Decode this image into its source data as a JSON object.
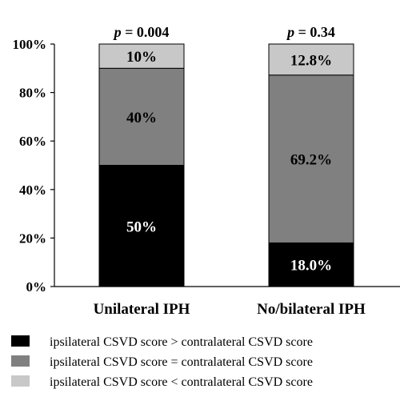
{
  "chart_data": {
    "type": "bar",
    "stacked": true,
    "categories": [
      "Unilateral IPH",
      "No/bilateral IPH"
    ],
    "p_values": [
      "= 0.004",
      "= 0.34"
    ],
    "p_symbol": "p",
    "series": [
      {
        "name": "ipsilateral CSVD score > contralateral CSVD score",
        "values": [
          50,
          18.0
        ],
        "labels": [
          "50%",
          "18.0%"
        ],
        "color": "#000000",
        "label_color": "#ffffff"
      },
      {
        "name": "ipsilateral CSVD score = contralateral CSVD score",
        "values": [
          40,
          69.2
        ],
        "labels": [
          "40%",
          "69.2%"
        ],
        "color": "#808080",
        "label_color": "#000000"
      },
      {
        "name": "ipsilateral CSVD score < contralateral CSVD score",
        "values": [
          10,
          12.8
        ],
        "labels": [
          "10%",
          "12.8%"
        ],
        "color": "#c8c8c8",
        "label_color": "#000000"
      }
    ],
    "y_ticks": [
      "0%",
      "20%",
      "40%",
      "60%",
      "80%",
      "100%"
    ],
    "ylim": [
      0,
      100
    ],
    "grid": false,
    "legend_position": "bottom"
  }
}
